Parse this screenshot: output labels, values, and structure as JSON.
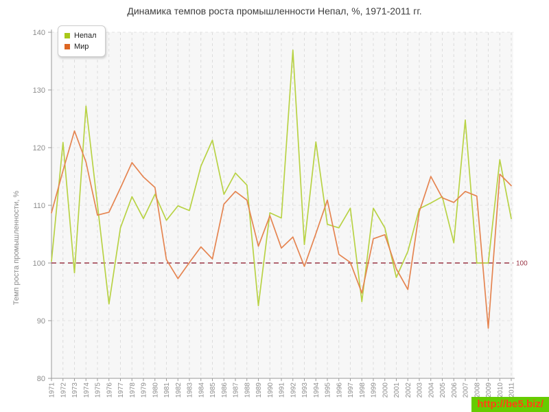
{
  "title": "Динамика темпов роста промышленности Непал, %, 1971-2011 гг.",
  "legend": {
    "items": [
      {
        "label": "Непал",
        "swatch_color": "#a8c819"
      },
      {
        "label": "Мир",
        "swatch_color": "#dd6622"
      }
    ]
  },
  "y_axis": {
    "title": "Темп роста промышленности, %",
    "min": 80,
    "max": 140,
    "tick_step": 10,
    "tick_labels": [
      "80",
      "90",
      "100",
      "110",
      "120",
      "130",
      "140"
    ]
  },
  "baseline": {
    "value": 100,
    "label": "100",
    "color": "#993344"
  },
  "watermark": {
    "text": "http://be5.biz/",
    "bg_color": "#66cc00",
    "text_color": "#ff4411"
  },
  "style": {
    "axis_color": "#999999",
    "grid_color": "#dcdcdc",
    "tick_label_color": "#8c8c8c",
    "plot_bg": "#f7f7f7"
  },
  "chart_data": {
    "type": "line",
    "title": "Динамика темпов роста промышленности Непал, %, 1971-2011 гг.",
    "xlabel": "",
    "ylabel": "Темп роста промышленности, %",
    "ylim": [
      80,
      140
    ],
    "grid": true,
    "legend_position": "top-left",
    "categories": [
      1971,
      1972,
      1973,
      1974,
      1975,
      1976,
      1977,
      1978,
      1979,
      1980,
      1981,
      1982,
      1983,
      1984,
      1985,
      1986,
      1987,
      1988,
      1989,
      1990,
      1991,
      1992,
      1993,
      1994,
      1995,
      1996,
      1997,
      1998,
      1999,
      2000,
      2001,
      2002,
      2003,
      2004,
      2005,
      2006,
      2007,
      2008,
      2009,
      2010,
      2011
    ],
    "series": [
      {
        "name": "Непал",
        "color": "#b8d244",
        "values": [
          100.3,
          120.9,
          98.3,
          127.2,
          110.1,
          92.9,
          106.1,
          111.5,
          107.7,
          111.9,
          107.4,
          109.9,
          109.1,
          116.8,
          121.3,
          111.9,
          115.6,
          113.5,
          92.6,
          108.7,
          107.8,
          136.9,
          103.2,
          121.0,
          106.7,
          106.1,
          109.5,
          93.3,
          109.5,
          106.1,
          97.5,
          102.0,
          109.4,
          110.4,
          111.5,
          103.5,
          124.8,
          100.0,
          100.0,
          117.9,
          107.7
        ]
      },
      {
        "name": "Мир",
        "color": "#e58450",
        "values": [
          108.7,
          116.0,
          122.9,
          117.5,
          108.3,
          108.8,
          113.0,
          117.4,
          114.9,
          113.1,
          100.6,
          97.3,
          100.1,
          102.8,
          100.7,
          110.2,
          112.4,
          110.9,
          102.9,
          108.2,
          102.6,
          104.5,
          99.4,
          105.1,
          110.9,
          101.5,
          100.1,
          94.8,
          104.2,
          104.9,
          99.0,
          95.4,
          108.9,
          115.0,
          111.3,
          110.5,
          112.4,
          111.6,
          88.7,
          115.4,
          113.4
        ]
      }
    ],
    "annotations": [
      {
        "type": "hline",
        "y": 100,
        "label": "100"
      }
    ]
  }
}
